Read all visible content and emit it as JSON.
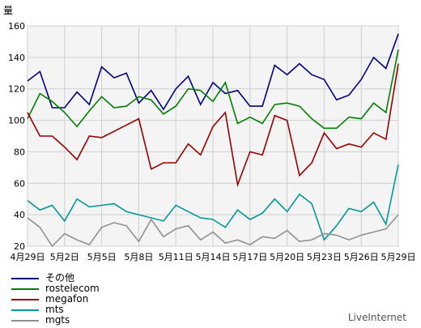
{
  "chart_data": {
    "type": "line",
    "ylabel": "量",
    "ylim": [
      20,
      160
    ],
    "yticks": [
      20,
      40,
      60,
      80,
      100,
      120,
      140,
      160
    ],
    "grid": true,
    "legend_position": "bottom-left",
    "x": [
      "4月29日",
      "4月30日",
      "5月1日",
      "5月2日",
      "5月3日",
      "5月4日",
      "5月5日",
      "5月6日",
      "5月7日",
      "5月8日",
      "5月9日",
      "5月10日",
      "5月11日",
      "5月12日",
      "5月13日",
      "5月14日",
      "5月15日",
      "5月16日",
      "5月17日",
      "5月18日",
      "5月19日",
      "5月20日",
      "5月21日",
      "5月22日",
      "5月23日",
      "5月24日",
      "5月25日",
      "5月26日",
      "5月27日",
      "5月28日",
      "5月29日"
    ],
    "xtick_labels": [
      "4月29日",
      "5月2日",
      "5月5日",
      "5月8日",
      "5月11日",
      "5月14日",
      "5月17日",
      "5月20日",
      "5月23日",
      "5月26日",
      "5月29日"
    ],
    "series": [
      {
        "name": "その他",
        "color": "#000080",
        "values": [
          125,
          131,
          108,
          108,
          118,
          110,
          134,
          127,
          130,
          111,
          119,
          107,
          120,
          128,
          110,
          124,
          117,
          119,
          109,
          109,
          135,
          129,
          136,
          129,
          126,
          113,
          116,
          126,
          140,
          133,
          155
        ]
      },
      {
        "name": "rostelecom",
        "color": "#008000",
        "values": [
          101,
          117,
          112,
          105,
          96,
          106,
          115,
          108,
          109,
          115,
          113,
          104,
          109,
          120,
          119,
          112,
          124,
          98,
          102,
          98,
          110,
          111,
          109,
          101,
          95,
          95,
          102,
          101,
          111,
          105,
          145
        ]
      },
      {
        "name": "megafon",
        "color": "#990000",
        "values": [
          105,
          90,
          90,
          83,
          75,
          90,
          89,
          93,
          97,
          101,
          69,
          73,
          73,
          85,
          78,
          96,
          105,
          59,
          80,
          78,
          103,
          100,
          65,
          73,
          92,
          82,
          85,
          83,
          92,
          88,
          136
        ]
      },
      {
        "name": "mts",
        "color": "#009999",
        "values": [
          49,
          43,
          46,
          36,
          50,
          45,
          46,
          47,
          42,
          40,
          38,
          36,
          46,
          42,
          38,
          37,
          32,
          43,
          37,
          41,
          50,
          42,
          53,
          47,
          24,
          33,
          44,
          42,
          48,
          34,
          72
        ]
      },
      {
        "name": "mgts",
        "color": "#909090",
        "values": [
          38,
          32,
          20,
          28,
          24,
          21,
          32,
          35,
          33,
          23,
          37,
          26,
          31,
          33,
          24,
          29,
          22,
          24,
          21,
          26,
          25,
          30,
          23,
          24,
          28,
          27,
          24,
          27,
          29,
          31,
          40
        ]
      }
    ]
  },
  "branding": {
    "text": "LiveInternet"
  }
}
